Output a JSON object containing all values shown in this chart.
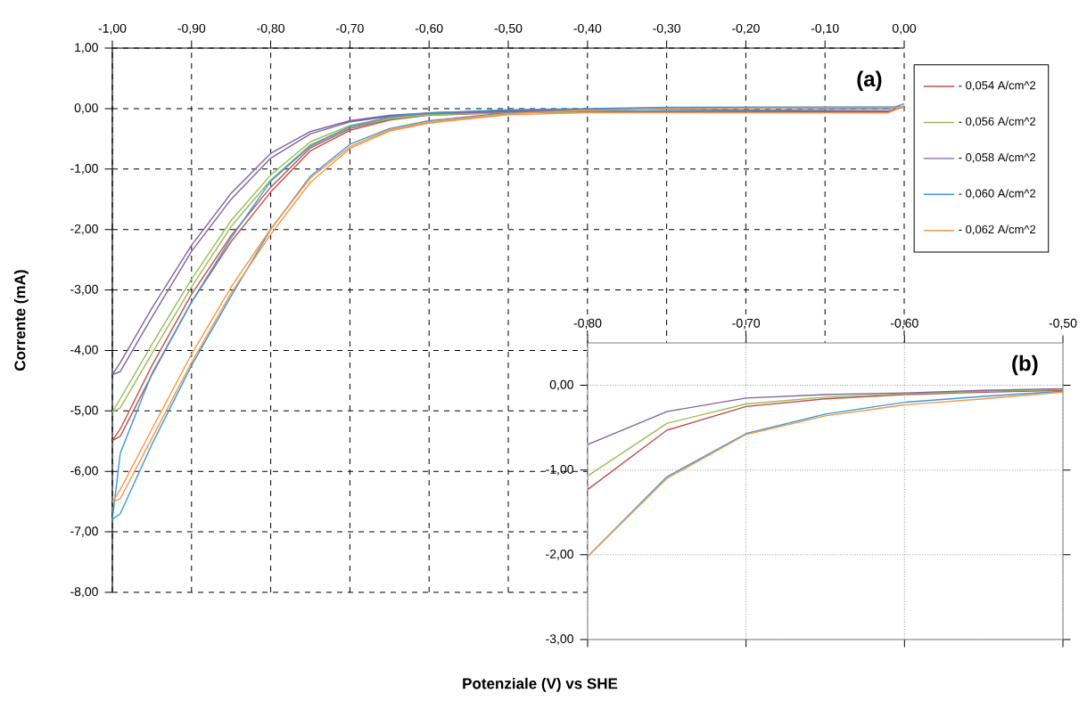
{
  "chart_data": [
    {
      "type": "line",
      "xlabel": "Potenziale (V) vs SHE",
      "ylabel": "Corrente (mA)",
      "annotations": [
        "(a)"
      ],
      "grid": true,
      "legend": "right",
      "xlim": [
        -1,
        0
      ],
      "ylim": [
        -8,
        1
      ],
      "xticks": [
        {
          "value": -1,
          "label": "-1,00"
        },
        {
          "value": -0.9,
          "label": "-0,90"
        },
        {
          "value": -0.8,
          "label": "-0,80"
        },
        {
          "value": -0.7,
          "label": "-0,70"
        },
        {
          "value": -0.6,
          "label": "-0,60"
        },
        {
          "value": -0.5,
          "label": "-0,50"
        },
        {
          "value": -0.4,
          "label": "-0,40"
        },
        {
          "value": -0.3,
          "label": "-0,30"
        },
        {
          "value": -0.2,
          "label": "-0,20"
        },
        {
          "value": -0.1,
          "label": "-0,10"
        },
        {
          "value": 0,
          "label": "0,00"
        }
      ],
      "yticks": [
        {
          "value": 1,
          "label": "1,00"
        },
        {
          "value": 0,
          "label": "0,00"
        },
        {
          "value": -1,
          "label": "-1,00"
        },
        {
          "value": -2,
          "label": "-2,00"
        },
        {
          "value": -3,
          "label": "-3,00"
        },
        {
          "value": -4,
          "label": "-4,00"
        },
        {
          "value": -5,
          "label": "-5,00"
        },
        {
          "value": -6,
          "label": "-6,00"
        },
        {
          "value": -7,
          "label": "-7,00"
        },
        {
          "value": -8,
          "label": "-8,00"
        }
      ],
      "series": [
        {
          "name": "- 0,054 A/cm^2",
          "color": "#c0504d",
          "x": [
            0,
            -0.3,
            -0.4,
            -0.5,
            -0.6,
            -0.65,
            -0.7,
            -0.75,
            -0.8,
            -0.85,
            -0.9,
            -0.95,
            -0.99,
            -1.0,
            -0.99,
            -0.95,
            -0.9,
            -0.85,
            -0.8,
            -0.75,
            -0.7,
            -0.65,
            -0.6,
            -0.5,
            -0.4,
            -0.02,
            0
          ],
          "values": [
            0.02,
            0.0,
            -0.02,
            -0.05,
            -0.1,
            -0.17,
            -0.33,
            -0.65,
            -1.3,
            -2.1,
            -3.07,
            -4.25,
            -5.3,
            -5.49,
            -5.42,
            -4.4,
            -3.2,
            -2.2,
            -1.38,
            -0.7,
            -0.36,
            -0.19,
            -0.11,
            -0.07,
            -0.05,
            -0.05,
            0.03
          ]
        },
        {
          "name": "- 0,056 A/cm^2",
          "color": "#9bbb59",
          "x": [
            0,
            -0.3,
            -0.4,
            -0.5,
            -0.6,
            -0.65,
            -0.7,
            -0.75,
            -0.8,
            -0.85,
            -0.9,
            -0.95,
            -0.99,
            -1.0,
            -0.99,
            -0.95,
            -0.9,
            -0.85,
            -0.8,
            -0.75,
            -0.7,
            -0.65,
            -0.6,
            -0.5,
            -0.4,
            -0.02,
            0
          ],
          "values": [
            0.02,
            0.0,
            -0.02,
            -0.04,
            -0.09,
            -0.15,
            -0.28,
            -0.55,
            -1.1,
            -1.85,
            -2.82,
            -3.9,
            -4.8,
            -5.02,
            -4.95,
            -4.05,
            -2.95,
            -1.95,
            -1.18,
            -0.6,
            -0.3,
            -0.17,
            -0.1,
            -0.07,
            -0.06,
            -0.07,
            0.04
          ]
        },
        {
          "name": "- 0,058 A/cm^2",
          "color": "#8064a2",
          "x": [
            0,
            -0.3,
            -0.4,
            -0.5,
            -0.6,
            -0.65,
            -0.7,
            -0.75,
            -0.8,
            -0.85,
            -0.9,
            -0.95,
            -0.99,
            -1.0,
            -0.99,
            -0.95,
            -0.9,
            -0.85,
            -0.8,
            -0.75,
            -0.7,
            -0.65,
            -0.6,
            -0.5,
            -0.4,
            -0.02,
            0
          ],
          "values": [
            0.02,
            0.0,
            -0.01,
            -0.03,
            -0.07,
            -0.11,
            -0.2,
            -0.38,
            -0.74,
            -1.4,
            -2.26,
            -3.3,
            -4.2,
            -4.4,
            -4.35,
            -3.45,
            -2.36,
            -1.5,
            -0.82,
            -0.42,
            -0.22,
            -0.13,
            -0.08,
            -0.05,
            -0.04,
            -0.04,
            0.04
          ]
        },
        {
          "name": "- 0,060 A/cm^2",
          "color": "#3a9ad9",
          "x": [
            0,
            -0.3,
            -0.4,
            -0.5,
            -0.6,
            -0.65,
            -0.7,
            -0.75,
            -0.8,
            -0.85,
            -0.9,
            -0.95,
            -0.99,
            -1.0,
            -0.99,
            -0.95,
            -0.9,
            -0.85,
            -0.8,
            -0.75,
            -0.7,
            -0.65,
            -0.6,
            -0.5,
            -0.4,
            -0.02,
            0
          ],
          "values": [
            0.03,
            0.02,
            0.0,
            -0.02,
            -0.07,
            -0.14,
            -0.3,
            -0.62,
            -1.2,
            -2.14,
            -3.2,
            -4.38,
            -5.7,
            -6.79,
            -6.7,
            -5.55,
            -4.25,
            -3.1,
            -2.0,
            -1.12,
            -0.59,
            -0.33,
            -0.2,
            -0.07,
            -0.04,
            -0.01,
            0.08
          ]
        },
        {
          "name": "- 0,062 A/cm^2",
          "color": "#f79646",
          "x": [
            0,
            -0.3,
            -0.4,
            -0.5,
            -0.6,
            -0.65,
            -0.7,
            -0.75,
            -0.8,
            -0.85,
            -0.9,
            -0.95,
            -0.99,
            -1.0,
            -0.99,
            -0.95,
            -0.9,
            -0.85,
            -0.8,
            -0.75,
            -0.7,
            -0.65,
            -0.6,
            -0.5,
            -0.4,
            -0.02,
            0
          ],
          "values": [
            0.02,
            0.0,
            -0.03,
            -0.08,
            -0.22,
            -0.35,
            -0.63,
            -1.15,
            -1.99,
            -2.95,
            -4.06,
            -5.3,
            -6.3,
            -6.51,
            -6.45,
            -5.45,
            -4.2,
            -3.05,
            -2.08,
            -1.22,
            -0.66,
            -0.37,
            -0.24,
            -0.1,
            -0.07,
            -0.07,
            0.05
          ]
        }
      ]
    },
    {
      "type": "line",
      "annotations": [
        "(b)"
      ],
      "grid": true,
      "xlim": [
        -0.8,
        -0.5
      ],
      "ylim": [
        -3,
        0.5
      ],
      "xticks": [
        {
          "value": -0.8,
          "label": "-0,80"
        },
        {
          "value": -0.7,
          "label": "-0,70"
        },
        {
          "value": -0.6,
          "label": "-0,60"
        },
        {
          "value": -0.5,
          "label": "-0,50"
        }
      ],
      "yticks": [
        {
          "value": 0,
          "label": "0,00"
        },
        {
          "value": -1,
          "label": "-1,00"
        },
        {
          "value": -2,
          "label": "-2,00"
        },
        {
          "value": -3,
          "label": "-3,00"
        }
      ],
      "series": [
        {
          "color": "#c0504d",
          "x": [
            -0.8,
            -0.75,
            -0.7,
            -0.65,
            -0.6,
            -0.55,
            -0.5
          ],
          "values": [
            -1.23,
            -0.53,
            -0.25,
            -0.16,
            -0.11,
            -0.08,
            -0.06
          ]
        },
        {
          "color": "#9bbb59",
          "x": [
            -0.8,
            -0.75,
            -0.7,
            -0.65,
            -0.6,
            -0.55,
            -0.5
          ],
          "values": [
            -1.07,
            -0.45,
            -0.22,
            -0.14,
            -0.1,
            -0.07,
            -0.05
          ]
        },
        {
          "color": "#8064a2",
          "x": [
            -0.8,
            -0.75,
            -0.7,
            -0.65,
            -0.6,
            -0.55,
            -0.5
          ],
          "values": [
            -0.7,
            -0.31,
            -0.15,
            -0.11,
            -0.09,
            -0.06,
            -0.04
          ]
        },
        {
          "color": "#3a9ad9",
          "x": [
            -0.8,
            -0.75,
            -0.7,
            -0.65,
            -0.6,
            -0.55,
            -0.5
          ],
          "values": [
            -2.02,
            -1.08,
            -0.57,
            -0.34,
            -0.2,
            -0.13,
            -0.07
          ]
        },
        {
          "color": "#f79646",
          "x": [
            -0.8,
            -0.75,
            -0.7,
            -0.65,
            -0.6,
            -0.55,
            -0.5
          ],
          "values": [
            -2.02,
            -1.1,
            -0.58,
            -0.36,
            -0.23,
            -0.16,
            -0.08
          ]
        }
      ]
    }
  ]
}
